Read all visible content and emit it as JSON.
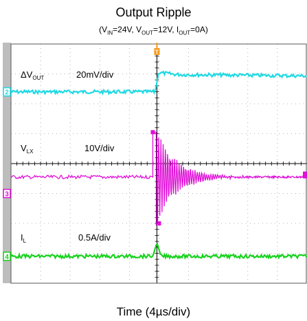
{
  "chart_data": {
    "type": "line",
    "title": "Output Ripple",
    "subtitle": {
      "parts": [
        {
          "t": "(V",
          "sub": false
        },
        {
          "t": "IN",
          "sub": true
        },
        {
          "t": "=24V, V",
          "sub": false
        },
        {
          "t": "OUT",
          "sub": true
        },
        {
          "t": "=12V, I",
          "sub": false
        },
        {
          "t": "OUT",
          "sub": true
        },
        {
          "t": "=0A)",
          "sub": false
        }
      ]
    },
    "xlabel": "Time (4µs/div)",
    "grid": true,
    "divisions": {
      "x": 10,
      "y": 8
    },
    "trigger_marker": "T",
    "channels": [
      {
        "marker": "2",
        "label_main": "ΔV",
        "label_sub": "OUT",
        "scale": "20mV/div",
        "color": "#1fd9e3",
        "baseline_div": 6.4,
        "kind": "step",
        "before_level_div": 6.4,
        "after_level_div": 7.0
      },
      {
        "marker": "",
        "label_main": "V",
        "label_sub": "LX",
        "scale": "10V/div",
        "color": "#e010d8",
        "baseline_div": 3.55,
        "kind": "switching",
        "high_level_div": 5.05,
        "low_level_div": 2.0
      },
      {
        "marker": "3",
        "label_main": "",
        "label_sub": "",
        "scale": "",
        "color": "#e010d8",
        "baseline_div": 3.0,
        "kind": "ref"
      },
      {
        "marker": "4",
        "label_main": "I",
        "label_sub": "L",
        "scale": "0.5A/div",
        "color": "#18d21e",
        "baseline_div": 0.9,
        "kind": "pulse",
        "peak_div": 1.35
      }
    ]
  }
}
